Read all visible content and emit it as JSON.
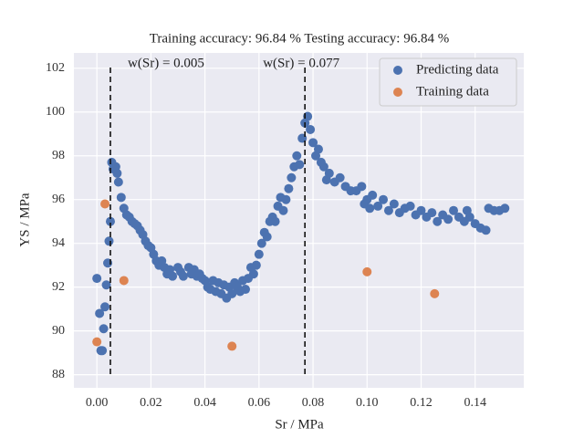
{
  "chart_data": {
    "type": "scatter",
    "title": "Training accuracy: 96.84 %  Testing accuracy: 96.84 %",
    "x_label": "Sr / MPa",
    "y_label": "YS / MPa",
    "xlim": [
      -0.0085,
      0.158
    ],
    "ylim": [
      87.4,
      102.7
    ],
    "xticks": [
      {
        "value": 0,
        "label": "0.00"
      },
      0.02,
      0.04,
      0.06,
      0.08,
      {
        "value": 0.1,
        "label": "0.10"
      },
      0.12,
      0.14
    ],
    "yticks": [
      88,
      90,
      92,
      94,
      96,
      98,
      100,
      102
    ],
    "grid": true,
    "legend": "upper right",
    "vlines": [
      {
        "x": 0.005,
        "label": "w(Sr) = 0.005"
      },
      {
        "x": 0.077,
        "label": "w(Sr) = 0.077"
      }
    ],
    "series": [
      {
        "name": "Predicting data",
        "color": "#4c72b0",
        "x": [
          0.0,
          0.001,
          0.0015,
          0.002,
          0.0025,
          0.003,
          0.0035,
          0.004,
          0.0045,
          0.005,
          0.0055,
          0.006,
          0.007,
          0.0075,
          0.008,
          0.009,
          0.01,
          0.011,
          0.012,
          0.013,
          0.014,
          0.015,
          0.016,
          0.017,
          0.018,
          0.019,
          0.02,
          0.021,
          0.022,
          0.023,
          0.024,
          0.025,
          0.026,
          0.027,
          0.028,
          0.03,
          0.031,
          0.032,
          0.034,
          0.035,
          0.036,
          0.037,
          0.038,
          0.039,
          0.04,
          0.041,
          0.042,
          0.043,
          0.044,
          0.045,
          0.046,
          0.047,
          0.048,
          0.049,
          0.05,
          0.051,
          0.052,
          0.053,
          0.054,
          0.055,
          0.056,
          0.057,
          0.058,
          0.059,
          0.06,
          0.061,
          0.062,
          0.063,
          0.064,
          0.065,
          0.066,
          0.067,
          0.068,
          0.069,
          0.07,
          0.071,
          0.072,
          0.073,
          0.074,
          0.075,
          0.076,
          0.077,
          0.078,
          0.079,
          0.08,
          0.081,
          0.082,
          0.083,
          0.084,
          0.085,
          0.086,
          0.088,
          0.09,
          0.092,
          0.094,
          0.096,
          0.098,
          0.099,
          0.1,
          0.101,
          0.102,
          0.104,
          0.106,
          0.108,
          0.11,
          0.112,
          0.114,
          0.116,
          0.118,
          0.12,
          0.122,
          0.124,
          0.126,
          0.128,
          0.13,
          0.132,
          0.134,
          0.136,
          0.137,
          0.138,
          0.14,
          0.142,
          0.144,
          0.145,
          0.147,
          0.149,
          0.151
        ],
        "values": [
          92.4,
          90.8,
          89.1,
          89.1,
          90.1,
          91.1,
          92.1,
          93.1,
          94.1,
          95.0,
          97.7,
          97.4,
          97.5,
          97.2,
          96.8,
          96.1,
          95.6,
          95.3,
          95.2,
          95.0,
          94.9,
          94.8,
          94.6,
          94.4,
          94.1,
          93.9,
          93.8,
          93.5,
          93.2,
          93.0,
          93.2,
          92.9,
          92.6,
          92.8,
          92.5,
          92.9,
          92.7,
          92.5,
          92.9,
          92.6,
          92.8,
          92.5,
          92.6,
          92.4,
          92.3,
          92.0,
          91.9,
          92.3,
          91.8,
          92.2,
          91.7,
          92.1,
          91.5,
          92.0,
          91.7,
          92.2,
          92.0,
          91.8,
          92.3,
          91.9,
          92.4,
          92.9,
          92.6,
          93.0,
          93.5,
          94.0,
          94.5,
          94.3,
          95.0,
          95.2,
          95.0,
          95.7,
          96.1,
          95.5,
          96.0,
          96.5,
          97.0,
          97.5,
          98.0,
          97.6,
          98.8,
          99.5,
          99.8,
          99.2,
          98.6,
          98.0,
          98.3,
          97.7,
          97.5,
          96.9,
          97.2,
          96.8,
          97.0,
          96.6,
          96.4,
          96.4,
          96.6,
          95.8,
          96.0,
          95.6,
          96.2,
          95.7,
          96.0,
          95.5,
          95.8,
          95.4,
          95.6,
          95.7,
          95.3,
          95.5,
          95.2,
          95.4,
          95.0,
          95.3,
          95.1,
          95.5,
          95.2,
          95.0,
          95.5,
          95.2,
          94.9,
          94.7,
          94.6,
          95.6,
          95.5,
          95.5,
          95.6
        ]
      },
      {
        "name": "Training data",
        "color": "#dd8452",
        "x": [
          0.0,
          0.003,
          0.01,
          0.05,
          0.1,
          0.125
        ],
        "values": [
          89.5,
          95.8,
          92.3,
          89.3,
          92.7,
          91.7
        ]
      }
    ]
  }
}
